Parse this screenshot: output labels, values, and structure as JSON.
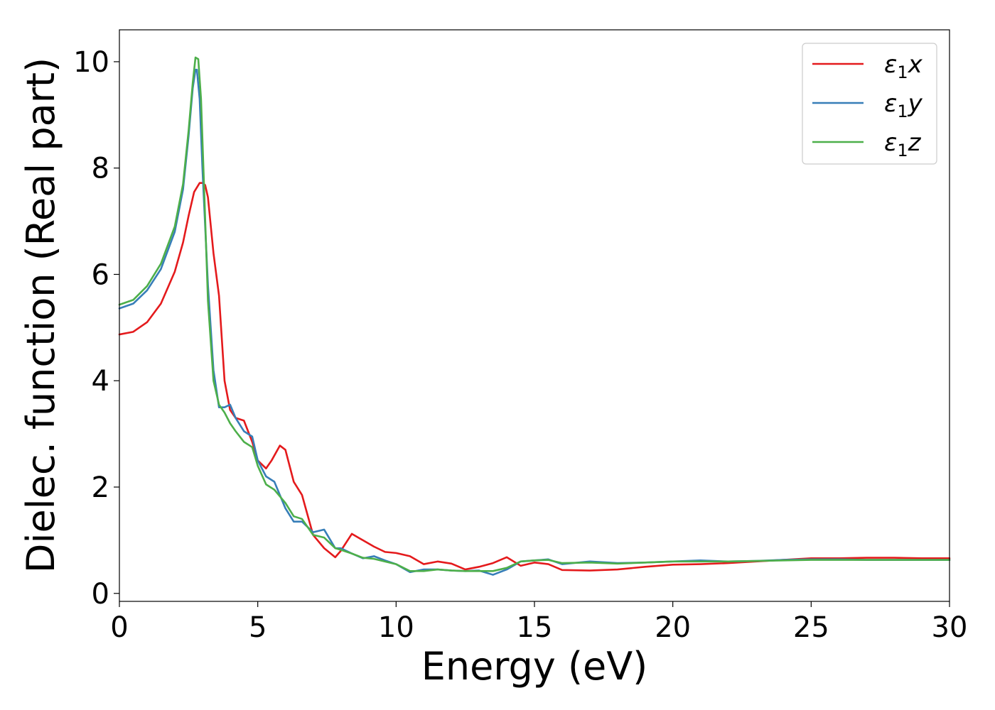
{
  "chart_data": {
    "type": "line",
    "title": "",
    "xlabel": "Energy (eV)",
    "ylabel": "Dielec. function (Real part)",
    "xlim": [
      0,
      30
    ],
    "ylim": [
      -0.15,
      10.6
    ],
    "xticks": [
      0,
      5,
      10,
      15,
      20,
      25,
      30
    ],
    "yticks": [
      0,
      2,
      4,
      6,
      8,
      10
    ],
    "grid": false,
    "legend_position": "top-right",
    "series": [
      {
        "name": "ε₁x",
        "legend_main": "ε",
        "legend_sub": "1",
        "legend_var": "x",
        "color": "#e41a1c",
        "x": [
          0,
          0.5,
          1,
          1.5,
          2,
          2.3,
          2.5,
          2.7,
          2.9,
          3.0,
          3.1,
          3.2,
          3.4,
          3.6,
          3.8,
          4.0,
          4.2,
          4.5,
          4.8,
          5.0,
          5.3,
          5.5,
          5.8,
          6.0,
          6.3,
          6.6,
          7.0,
          7.4,
          7.8,
          8.0,
          8.4,
          8.8,
          9.2,
          9.6,
          10.0,
          10.5,
          11.0,
          11.5,
          12.0,
          12.5,
          13.0,
          13.5,
          14.0,
          14.5,
          15.0,
          15.5,
          16.0,
          17.0,
          18.0,
          19.0,
          20.0,
          21.0,
          22.0,
          23.0,
          24.0,
          25.0,
          26.0,
          27.0,
          28.0,
          29.0,
          30.0
        ],
        "y": [
          4.87,
          4.92,
          5.1,
          5.45,
          6.05,
          6.6,
          7.1,
          7.55,
          7.72,
          7.72,
          7.68,
          7.45,
          6.4,
          5.6,
          4.0,
          3.45,
          3.3,
          3.25,
          2.85,
          2.5,
          2.35,
          2.5,
          2.78,
          2.7,
          2.1,
          1.85,
          1.1,
          0.85,
          0.68,
          0.8,
          1.12,
          1.0,
          0.88,
          0.78,
          0.76,
          0.7,
          0.55,
          0.6,
          0.56,
          0.45,
          0.5,
          0.57,
          0.68,
          0.52,
          0.58,
          0.55,
          0.44,
          0.43,
          0.45,
          0.5,
          0.54,
          0.55,
          0.57,
          0.6,
          0.63,
          0.66,
          0.66,
          0.67,
          0.67,
          0.66,
          0.66
        ]
      },
      {
        "name": "ε₁y",
        "legend_main": "ε",
        "legend_sub": "1",
        "legend_var": "y",
        "color": "#377eb8",
        "x": [
          0,
          0.5,
          1,
          1.5,
          2,
          2.3,
          2.5,
          2.65,
          2.75,
          2.8,
          2.9,
          3.0,
          3.2,
          3.4,
          3.6,
          3.8,
          4.0,
          4.2,
          4.5,
          4.8,
          5.0,
          5.3,
          5.6,
          6.0,
          6.3,
          6.6,
          7.0,
          7.4,
          7.8,
          8.0,
          8.4,
          8.8,
          9.2,
          9.6,
          10.0,
          10.5,
          11.0,
          11.5,
          12.0,
          12.5,
          13.0,
          13.5,
          14.0,
          14.5,
          15.0,
          15.5,
          16.0,
          17.0,
          18.0,
          19.0,
          20.0,
          21.0,
          22.0,
          23.0,
          24.0,
          25.0,
          26.0,
          27.0,
          28.0,
          29.0,
          30.0
        ],
        "y": [
          5.36,
          5.45,
          5.7,
          6.1,
          6.8,
          7.6,
          8.6,
          9.5,
          9.85,
          9.85,
          9.3,
          8.0,
          5.8,
          4.2,
          3.5,
          3.5,
          3.55,
          3.3,
          3.05,
          2.95,
          2.5,
          2.2,
          2.1,
          1.6,
          1.35,
          1.35,
          1.15,
          1.2,
          0.85,
          0.85,
          0.75,
          0.66,
          0.7,
          0.62,
          0.55,
          0.4,
          0.45,
          0.45,
          0.43,
          0.42,
          0.43,
          0.35,
          0.45,
          0.6,
          0.62,
          0.64,
          0.55,
          0.6,
          0.57,
          0.58,
          0.6,
          0.62,
          0.6,
          0.61,
          0.63,
          0.64,
          0.64,
          0.63,
          0.63,
          0.63,
          0.63
        ]
      },
      {
        "name": "ε₁z",
        "legend_main": "ε",
        "legend_sub": "1",
        "legend_var": "z",
        "color": "#4daf4a",
        "x": [
          0,
          0.5,
          1,
          1.5,
          2,
          2.3,
          2.5,
          2.65,
          2.75,
          2.85,
          2.95,
          3.05,
          3.2,
          3.4,
          3.6,
          3.8,
          4.0,
          4.2,
          4.5,
          4.8,
          5.0,
          5.3,
          5.6,
          6.0,
          6.3,
          6.6,
          7.0,
          7.4,
          7.8,
          8.0,
          8.4,
          8.8,
          9.2,
          9.6,
          10.0,
          10.5,
          11.0,
          11.5,
          12.0,
          12.5,
          13.0,
          13.5,
          14.0,
          14.5,
          15.0,
          15.5,
          16.0,
          17.0,
          18.0,
          19.0,
          20.0,
          21.0,
          22.0,
          23.0,
          24.0,
          25.0,
          26.0,
          27.0,
          28.0,
          29.0,
          30.0
        ],
        "y": [
          5.43,
          5.52,
          5.78,
          6.2,
          6.9,
          7.7,
          8.7,
          9.6,
          10.08,
          10.05,
          9.3,
          7.8,
          5.5,
          4.0,
          3.55,
          3.4,
          3.2,
          3.05,
          2.85,
          2.75,
          2.4,
          2.05,
          1.95,
          1.7,
          1.45,
          1.4,
          1.1,
          1.05,
          0.85,
          0.82,
          0.75,
          0.67,
          0.65,
          0.6,
          0.55,
          0.42,
          0.42,
          0.45,
          0.43,
          0.42,
          0.42,
          0.42,
          0.48,
          0.6,
          0.62,
          0.63,
          0.57,
          0.58,
          0.56,
          0.58,
          0.6,
          0.6,
          0.6,
          0.61,
          0.62,
          0.63,
          0.63,
          0.63,
          0.63,
          0.63,
          0.63
        ]
      }
    ]
  }
}
